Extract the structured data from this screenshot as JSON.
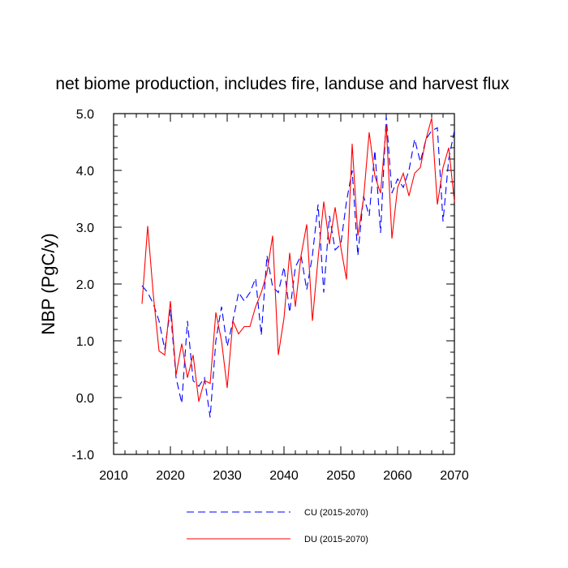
{
  "chart_data": {
    "type": "line",
    "title": "net biome production, includes fire, landuse and harvest flux",
    "xlabel": "",
    "ylabel": "NBP  (PgC/y)",
    "xlim": [
      2010,
      2070
    ],
    "ylim": [
      -1.0,
      5.0
    ],
    "xticks": [
      2010,
      2020,
      2030,
      2040,
      2050,
      2060,
      2070
    ],
    "xtick_labels": [
      "2010",
      "2020",
      "2030",
      "2040",
      "2050",
      "2060",
      "2070"
    ],
    "yticks": [
      -1.0,
      0.0,
      1.0,
      2.0,
      3.0,
      4.0,
      5.0
    ],
    "ytick_labels": [
      "-1.0",
      "0.0",
      "1.0",
      "2.0",
      "3.0",
      "4.0",
      "5.0"
    ],
    "grid": false,
    "legend_position": "bottom",
    "x": [
      2015,
      2016,
      2017,
      2018,
      2019,
      2020,
      2021,
      2022,
      2023,
      2024,
      2025,
      2026,
      2027,
      2028,
      2029,
      2030,
      2031,
      2032,
      2033,
      2034,
      2035,
      2036,
      2037,
      2038,
      2039,
      2040,
      2041,
      2042,
      2043,
      2044,
      2045,
      2046,
      2047,
      2048,
      2049,
      2050,
      2051,
      2052,
      2053,
      2054,
      2055,
      2056,
      2057,
      2058,
      2059,
      2060,
      2061,
      2062,
      2063,
      2064,
      2065,
      2066,
      2067,
      2068,
      2069,
      2070
    ],
    "series": [
      {
        "name": "CU (2015-2070)",
        "color": "#0000ff",
        "dash": "dashed",
        "values": [
          1.97,
          1.85,
          1.65,
          1.35,
          0.85,
          1.55,
          0.35,
          -0.1,
          1.35,
          0.3,
          0.2,
          0.35,
          -0.35,
          1.0,
          1.6,
          0.9,
          1.35,
          1.85,
          1.7,
          1.85,
          2.1,
          1.1,
          2.5,
          1.95,
          1.85,
          2.3,
          1.5,
          2.3,
          2.5,
          1.9,
          2.5,
          3.4,
          1.85,
          3.2,
          2.6,
          2.7,
          3.45,
          4.0,
          2.5,
          3.55,
          3.2,
          4.35,
          2.9,
          4.95,
          3.6,
          3.85,
          3.7,
          4.0,
          4.55,
          4.15,
          4.55,
          4.7,
          4.75,
          3.1,
          4.2,
          4.7
        ]
      },
      {
        "name": "DU (2015-2070)",
        "color": "#ff0000",
        "dash": "solid",
        "values": [
          1.65,
          3.02,
          1.8,
          0.82,
          0.75,
          1.7,
          0.4,
          0.95,
          0.35,
          0.75,
          -0.07,
          0.3,
          0.25,
          1.5,
          1.0,
          0.17,
          1.35,
          1.12,
          1.25,
          1.25,
          1.6,
          1.85,
          2.2,
          2.85,
          0.75,
          1.4,
          2.55,
          1.6,
          2.5,
          3.05,
          1.35,
          2.45,
          3.45,
          2.7,
          3.35,
          2.65,
          2.08,
          4.47,
          2.85,
          3.5,
          4.67,
          3.9,
          3.6,
          4.8,
          2.8,
          3.7,
          3.95,
          3.55,
          3.95,
          4.05,
          4.55,
          4.92,
          3.4,
          4.05,
          4.4,
          3.45
        ]
      }
    ]
  }
}
